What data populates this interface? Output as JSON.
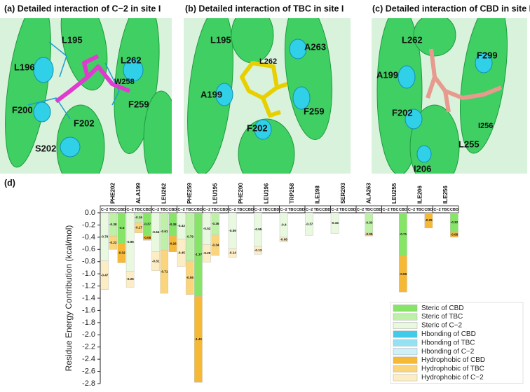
{
  "panels": [
    {
      "title": "(a) Detailed interaction of C−2 in site I",
      "labels": [
        "L195",
        "L196",
        "L262",
        "W258",
        "F200",
        "F259",
        "F202",
        "S202"
      ]
    },
    {
      "title": "(b) Detailed interaction of TBC in site I",
      "labels": [
        "L195",
        "A263",
        "L262",
        "A199",
        "F259",
        "F202"
      ]
    },
    {
      "title": "(c) Detailed interaction of CBD in site I",
      "labels": [
        "L262",
        "F299",
        "A199",
        "I256",
        "F202",
        "L255",
        "I206"
      ]
    }
  ],
  "chart_data": {
    "type": "bar",
    "stacked": true,
    "panel_label": "(d)",
    "ylabel": "Residue Energy Contribution (kcal/mol)",
    "categories": [
      "PHE202",
      "ALA199",
      "LEU262",
      "PHE259",
      "LEU195",
      "PHE200",
      "LEU196",
      "TRP258",
      "ILE198",
      "SER203",
      "ALA263",
      "LEU255",
      "ILE206",
      "ILE256"
    ],
    "subgroups": [
      "C−2",
      "TBC",
      "CBD"
    ],
    "ylim": [
      0,
      -2.8
    ],
    "yticks": [
      {
        "value": 0,
        "label": "0.0"
      },
      -0.2,
      -0.4,
      -0.6,
      -0.8,
      {
        "value": -1,
        "label": "-1.0"
      },
      -1.2,
      -1.4,
      -1.6,
      -1.8,
      {
        "value": -2,
        "label": "-2.0"
      },
      -2.2,
      -2.4,
      -2.6,
      -2.8
    ],
    "data_labels": true,
    "legend": "lower right",
    "series": [
      {
        "name": "Steric of CBD",
        "color": "#86e466",
        "values": [
          -0.5,
          -0.37,
          -0.38,
          -1.37,
          null,
          null,
          null,
          null,
          null,
          null,
          null,
          -0.71,
          null,
          -0.32
        ]
      },
      {
        "name": "Steric of TBC",
        "color": "#bff0a8",
        "values": [
          -0.38,
          -0.16,
          -0.61,
          -0.79,
          -0.36,
          null,
          null,
          null,
          null,
          null,
          -0.33,
          null,
          null,
          null
        ]
      },
      {
        "name": "Steric of C−2",
        "color": "#e8f9e0",
        "values": [
          -0.79,
          -0.96,
          -0.64,
          -0.43,
          -0.52,
          -0.59,
          -0.55,
          -0.4,
          -0.37,
          -0.34,
          null,
          null,
          null,
          null
        ]
      },
      {
        "name": "Hbonding of CBD",
        "color": "#3fcbe9",
        "values": [
          null,
          null,
          null,
          null,
          null,
          null,
          null,
          null,
          null,
          null,
          null,
          null,
          null,
          null
        ]
      },
      {
        "name": "Hbonding of TBC",
        "color": "#93e2f3",
        "values": [
          null,
          null,
          null,
          null,
          null,
          null,
          null,
          null,
          null,
          null,
          null,
          null,
          null,
          null
        ]
      },
      {
        "name": "Hbonding of C−2",
        "color": "#cdf0f9",
        "values": [
          null,
          null,
          null,
          null,
          null,
          null,
          null,
          null,
          null,
          null,
          null,
          null,
          null,
          null
        ]
      },
      {
        "name": "Hydrophobic of CBD",
        "color": "#f6b935",
        "values": [
          -0.32,
          -0.08,
          -0.26,
          -1.41,
          null,
          null,
          null,
          null,
          null,
          null,
          null,
          -0.59,
          -0.25,
          -0.08
        ]
      },
      {
        "name": "Hydrophobic of TBC",
        "color": "#fbd57c",
        "values": [
          -0.22,
          -0.17,
          -0.71,
          -0.55,
          -0.34,
          null,
          null,
          null,
          null,
          null,
          -0.05,
          null,
          null,
          null
        ]
      },
      {
        "name": "Hydrophobic of C−2",
        "color": "#fdedc4",
        "values": [
          -0.47,
          -0.26,
          -0.31,
          -0.45,
          -0.29,
          -0.14,
          -0.13,
          -0.08,
          null,
          null,
          null,
          null,
          null,
          null
        ]
      }
    ]
  }
}
